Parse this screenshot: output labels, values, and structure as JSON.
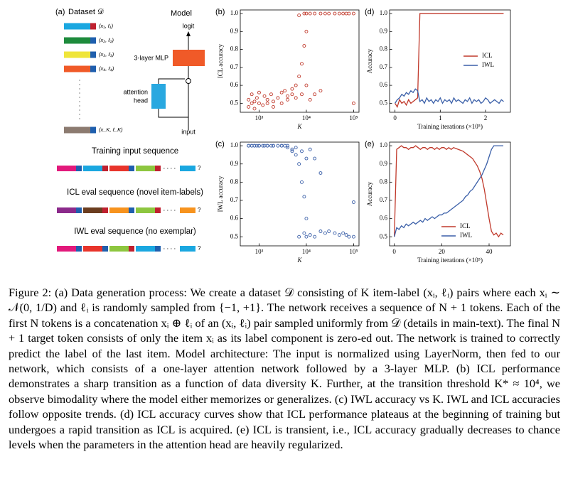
{
  "panel_a": {
    "label": "(a)",
    "dataset": "Dataset 𝒟",
    "model": "Model",
    "logit": "logit",
    "mlp": "3-layer MLP",
    "attention": [
      "attention",
      "head"
    ],
    "input": "input",
    "items": [
      "(x₁, ℓ₁)",
      "(x₂, ℓ₂)",
      "(x₃, ℓ₃)",
      "(x₄, ℓ₄)",
      "(x_K, ℓ_K)"
    ],
    "sequences": [
      {
        "title": "Training input sequence",
        "query": "?"
      },
      {
        "title": "ICL eval sequence (novel item-labels)",
        "query": "?"
      },
      {
        "title": "IWL eval sequence (no exemplar)",
        "query": "?"
      }
    ]
  },
  "chart_data": [
    {
      "type": "scatter",
      "title": "(b)",
      "xlabel": "K",
      "ylabel": "ICL accuracy",
      "xscale": "log",
      "color": "#c0392b",
      "x": [
        600,
        600,
        700,
        700,
        800,
        800,
        900,
        1000,
        1000,
        1200,
        1300,
        1500,
        1500,
        1800,
        2000,
        2000,
        2500,
        3000,
        3000,
        3500,
        4000,
        4000,
        5000,
        5000,
        6000,
        6000,
        7000,
        7000,
        8000,
        8000,
        9000,
        9000,
        10000,
        10000,
        10000,
        12000,
        12000,
        15000,
        15000,
        20000,
        20000,
        25000,
        30000,
        40000,
        50000,
        60000,
        70000,
        80000,
        100000,
        100000
      ],
      "values": [
        0.52,
        0.48,
        0.5,
        0.55,
        0.51,
        0.47,
        0.53,
        0.5,
        0.56,
        0.49,
        0.54,
        0.5,
        0.52,
        0.55,
        0.51,
        0.48,
        0.53,
        0.56,
        0.5,
        0.57,
        0.52,
        0.54,
        0.55,
        0.58,
        0.6,
        0.53,
        0.99,
        0.65,
        0.72,
        0.55,
        1.0,
        0.82,
        1.0,
        0.6,
        0.9,
        1.0,
        0.52,
        1.0,
        0.55,
        1.0,
        0.57,
        1.0,
        1.0,
        1.0,
        1.0,
        1.0,
        1.0,
        1.0,
        1.0,
        0.5
      ],
      "xlim": [
        400,
        130000
      ],
      "xticks": [
        {
          "value": 1000,
          "label": "10³"
        },
        {
          "value": 10000,
          "label": "10⁴"
        },
        {
          "value": 100000,
          "label": "10⁵"
        }
      ],
      "ylim": [
        0.45,
        1.02
      ],
      "yticks": [
        0.5,
        0.6,
        0.7,
        0.8,
        0.9,
        {
          "value": 1,
          "label": "1.0"
        }
      ]
    },
    {
      "type": "scatter",
      "title": "(c)",
      "xlabel": "K",
      "ylabel": "IWL accuracy",
      "xscale": "log",
      "color": "#3a5fa8",
      "x": [
        600,
        600,
        700,
        700,
        800,
        800,
        900,
        1000,
        1000,
        1200,
        1300,
        1500,
        1500,
        1800,
        2000,
        2000,
        2500,
        3000,
        3000,
        3500,
        4000,
        4000,
        5000,
        5000,
        6000,
        6000,
        7000,
        7000,
        8000,
        8000,
        9000,
        9000,
        10000,
        10000,
        10000,
        12000,
        12000,
        15000,
        15000,
        20000,
        20000,
        25000,
        30000,
        40000,
        50000,
        60000,
        70000,
        80000,
        100000,
        100000
      ],
      "values": [
        1.0,
        1.0,
        1.0,
        1.0,
        1.0,
        1.0,
        1.0,
        1.0,
        1.0,
        1.0,
        1.0,
        1.0,
        1.0,
        1.0,
        1.0,
        1.0,
        1.0,
        1.0,
        1.0,
        1.0,
        0.99,
        1.0,
        0.98,
        0.97,
        0.95,
        0.99,
        0.5,
        0.9,
        0.8,
        0.97,
        0.52,
        0.72,
        0.5,
        0.93,
        0.6,
        0.51,
        0.98,
        0.5,
        0.93,
        0.53,
        0.85,
        0.52,
        0.53,
        0.52,
        0.51,
        0.52,
        0.51,
        0.5,
        0.69,
        0.5
      ],
      "xlim": [
        400,
        130000
      ],
      "xticks": [
        {
          "value": 1000,
          "label": "10³"
        },
        {
          "value": 10000,
          "label": "10⁴"
        },
        {
          "value": 100000,
          "label": "10⁵"
        }
      ],
      "ylim": [
        0.45,
        1.02
      ],
      "yticks": [
        0.5,
        0.6,
        0.7,
        0.8,
        0.9,
        {
          "value": 1,
          "label": "1.0"
        }
      ]
    },
    {
      "type": "line",
      "title": "(d)",
      "xlabel": "Training iterations (×10⁵)",
      "ylabel": "Accuracy",
      "legend": "center right",
      "x": [
        0,
        0.05,
        0.1,
        0.15,
        0.2,
        0.25,
        0.3,
        0.35,
        0.4,
        0.45,
        0.5,
        0.55,
        0.6,
        0.65,
        0.7,
        0.75,
        0.8,
        0.85,
        0.9,
        0.95,
        1,
        1.05,
        1.1,
        1.15,
        1.2,
        1.25,
        1.3,
        1.35,
        1.4,
        1.45,
        1.5,
        1.55,
        1.6,
        1.65,
        1.7,
        1.75,
        1.8,
        1.85,
        1.9,
        1.95,
        2,
        2.05,
        2.1,
        2.15,
        2.2,
        2.25,
        2.3,
        2.35,
        2.4
      ],
      "series": [
        {
          "name": "ICL",
          "color": "#c0392b",
          "values": [
            0.5,
            0.48,
            0.52,
            0.5,
            0.51,
            0.49,
            0.52,
            0.5,
            0.51,
            0.52,
            0.53,
            1.0,
            1.0,
            1.0,
            1.0,
            1.0,
            1.0,
            1.0,
            1.0,
            1.0,
            1.0,
            1.0,
            1.0,
            1.0,
            1.0,
            1.0,
            1.0,
            1.0,
            1.0,
            1.0,
            1.0,
            1.0,
            1.0,
            1.0,
            1.0,
            1.0,
            1.0,
            1.0,
            1.0,
            1.0,
            1.0,
            1.0,
            1.0,
            1.0,
            1.0,
            1.0,
            1.0,
            1.0,
            1.0
          ]
        },
        {
          "name": "IWL",
          "color": "#3a5fa8",
          "values": [
            0.5,
            0.52,
            0.53,
            0.55,
            0.54,
            0.56,
            0.55,
            0.57,
            0.56,
            0.58,
            0.57,
            0.51,
            0.52,
            0.5,
            0.53,
            0.51,
            0.52,
            0.5,
            0.52,
            0.51,
            0.53,
            0.5,
            0.52,
            0.51,
            0.52,
            0.5,
            0.53,
            0.51,
            0.52,
            0.51,
            0.5,
            0.52,
            0.51,
            0.53,
            0.5,
            0.52,
            0.51,
            0.52,
            0.5,
            0.51,
            0.53,
            0.52,
            0.5,
            0.51,
            0.52,
            0.51,
            0.5,
            0.52,
            0.51
          ]
        }
      ],
      "xlim": [
        -0.12,
        2.55
      ],
      "xticks": [
        0,
        1,
        2
      ],
      "ylim": [
        0.45,
        1.02
      ],
      "yticks": [
        0.5,
        0.6,
        0.7,
        0.8,
        0.9,
        {
          "value": 1,
          "label": "1.0"
        }
      ]
    },
    {
      "type": "line",
      "title": "(e)",
      "xlabel": "Training iterations (×10⁵)",
      "ylabel": "Accuracy",
      "legend": "lower center",
      "x": [
        0,
        1,
        2,
        3,
        4,
        5,
        6,
        7,
        8,
        9,
        10,
        11,
        12,
        13,
        14,
        15,
        16,
        17,
        18,
        19,
        20,
        21,
        22,
        23,
        24,
        25,
        26,
        27,
        28,
        29,
        30,
        31,
        32,
        33,
        34,
        35,
        36,
        37,
        38,
        39,
        40,
        41,
        42,
        43,
        44,
        45,
        46
      ],
      "series": [
        {
          "name": "ICL",
          "color": "#c0392b",
          "values": [
            0.5,
            0.98,
            0.99,
            1.0,
            0.99,
            0.99,
            0.98,
            0.99,
            0.99,
            1.0,
            0.99,
            0.98,
            0.99,
            0.99,
            0.98,
            0.99,
            0.99,
            0.98,
            0.99,
            0.98,
            0.99,
            0.99,
            0.98,
            0.99,
            0.98,
            0.99,
            0.985,
            0.98,
            0.975,
            0.97,
            0.96,
            0.95,
            0.94,
            0.93,
            0.91,
            0.89,
            0.86,
            0.82,
            0.76,
            0.68,
            0.6,
            0.53,
            0.51,
            0.52,
            0.5,
            0.52,
            0.51
          ]
        },
        {
          "name": "IWL",
          "color": "#3a5fa8",
          "values": [
            0.5,
            0.55,
            0.54,
            0.56,
            0.55,
            0.57,
            0.56,
            0.57,
            0.58,
            0.57,
            0.58,
            0.59,
            0.58,
            0.6,
            0.59,
            0.6,
            0.61,
            0.6,
            0.61,
            0.62,
            0.62,
            0.63,
            0.63,
            0.64,
            0.65,
            0.66,
            0.67,
            0.68,
            0.69,
            0.7,
            0.72,
            0.73,
            0.75,
            0.76,
            0.78,
            0.8,
            0.82,
            0.84,
            0.87,
            0.9,
            0.94,
            0.98,
            1.0,
            1.0,
            1.0,
            1.0,
            1.0
          ]
        }
      ],
      "xlim": [
        -2,
        49
      ],
      "xticks": [
        0,
        20,
        40
      ],
      "ylim": [
        0.45,
        1.02
      ],
      "yticks": [
        0.5,
        0.6,
        0.7,
        0.8,
        0.9,
        {
          "value": 1,
          "label": "1.0"
        }
      ]
    }
  ],
  "caption": "Figure 2: (a) Data generation process: We create a dataset 𝒟 consisting of K item-label (xᵢ, ℓᵢ) pairs where each xᵢ ∼ 𝒩(0, 1/D) and ℓᵢ is randomly sampled from {−1, +1}. The network receives a sequence of N + 1 tokens. Each of the first N tokens is a concatenation xᵢ ⊕ ℓᵢ of an (xᵢ, ℓᵢ) pair sampled uniformly from 𝒟 (details in main-text). The final N + 1 target token consists of only the item xᵢ as its label component is zero-ed out. The network is trained to correctly predict the label of the last item. Model architecture: The input is normalized using LayerNorm, then fed to our network, which consists of a one-layer attention network followed by a 3-layer MLP. (b) ICL performance demonstrates a sharp transition as a function of data diversity K. Further, at the transition threshold K* ≈ 10⁴, we observe bimodality where the model either memorizes or generalizes. (c) IWL accuracy vs K. IWL and ICL accuracies follow opposite trends. (d) ICL accuracy curves show that ICL performance plateaus at the beginning of training but undergoes a rapid transition as ICL is acquired. (e) ICL is transient, i.e., ICL accuracy gradually decreases to chance levels when the parameters in the attention head are heavily regularized."
}
